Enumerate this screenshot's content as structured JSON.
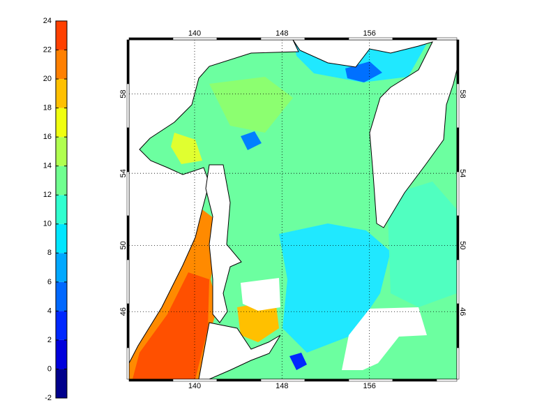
{
  "colorbar": {
    "ticks": [
      -2,
      0,
      2,
      4,
      6,
      8,
      10,
      12,
      14,
      16,
      18,
      20,
      22,
      24
    ],
    "colors": [
      "#00008c",
      "#0000dc",
      "#0028ff",
      "#0068ff",
      "#00a8ff",
      "#00e6ff",
      "#30ffcf",
      "#70ff8f",
      "#b0ff4f",
      "#f0ff10",
      "#ffc000",
      "#ff8000",
      "#ff4000",
      "#d80000"
    ]
  },
  "map": {
    "lonlim": [
      134,
      164
    ],
    "latlim": [
      41.6,
      60.5
    ],
    "lon_ticks": [
      140,
      148,
      156
    ],
    "lat_ticks": [
      46,
      50,
      54,
      58
    ],
    "grid": true
  }
}
